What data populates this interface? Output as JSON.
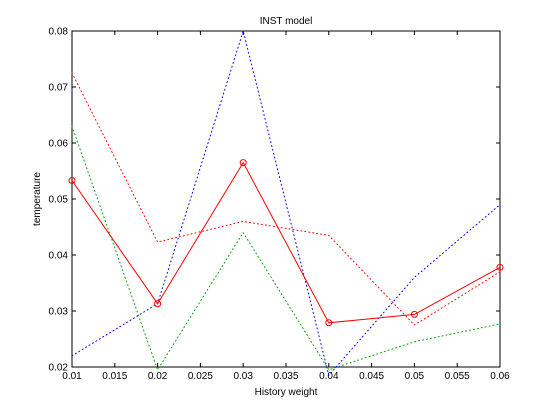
{
  "chart_data": {
    "type": "line",
    "title": "INST model",
    "xlabel": "History weight",
    "ylabel": "temperature",
    "x": [
      0.01,
      0.02,
      0.03,
      0.04,
      0.05,
      0.06
    ],
    "xlim": [
      0.01,
      0.06
    ],
    "ylim": [
      0.02,
      0.08
    ],
    "x_tick_labels": [
      "0.01",
      "0.015",
      "0.02",
      "0.025",
      "0.03",
      "0.035",
      "0.04",
      "0.045",
      "0.05",
      "0.055",
      "0.06"
    ],
    "y_tick_labels": [
      "0.02",
      "0.03",
      "0.04",
      "0.05",
      "0.06",
      "0.07",
      "0.08"
    ],
    "grid": false,
    "legend": "none",
    "series": [
      {
        "values": [
          0.0533,
          0.0313,
          0.0565,
          0.0279,
          0.0294,
          0.0378
        ],
        "color": "#ff0000",
        "line_style": "solid",
        "marker": "circle"
      },
      {
        "values": [
          0.0725,
          0.0423,
          0.046,
          0.0435,
          0.0275,
          0.037
        ],
        "color": "#ff0000",
        "line_style": "dotted",
        "marker": "none"
      },
      {
        "values": [
          0.063,
          0.0195,
          0.044,
          0.0195,
          0.0245,
          0.0277
        ],
        "color": "#00a000",
        "line_style": "dotted",
        "marker": "none"
      },
      {
        "values": [
          0.022,
          0.0313,
          0.08,
          0.0185,
          0.036,
          0.049
        ],
        "color": "#0000ff",
        "line_style": "dotted",
        "marker": "none"
      }
    ]
  }
}
